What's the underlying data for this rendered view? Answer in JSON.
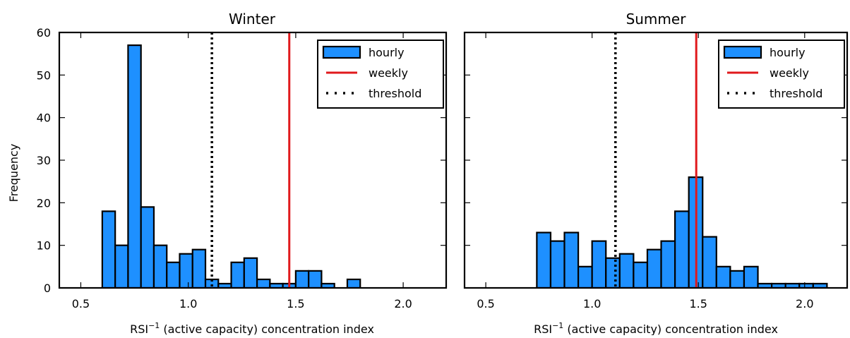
{
  "chart_data": [
    {
      "type": "bar",
      "title": "Winter",
      "xlabel_main": "RSI",
      "xlabel_sup": "−1",
      "xlabel_rest": " (active capacity) concentration index",
      "ylabel": "Frequency",
      "xlim": [
        0.4,
        2.2
      ],
      "ylim": [
        0,
        60
      ],
      "xticks": [
        "0.5",
        "1.0",
        "1.5",
        "2.0"
      ],
      "xtick_values": [
        0.5,
        1.0,
        1.5,
        2.0
      ],
      "yticks": [
        "0",
        "10",
        "20",
        "30",
        "40",
        "50",
        "60"
      ],
      "ytick_values": [
        0,
        10,
        20,
        30,
        40,
        50,
        60
      ],
      "bin_width": 0.06,
      "series": [
        {
          "name": "hourly",
          "type": "histogram",
          "bin_edges": [
            0.6,
            0.66,
            0.72,
            0.78,
            0.84,
            0.9,
            0.96,
            1.02,
            1.08,
            1.14,
            1.2,
            1.26,
            1.32,
            1.38,
            1.44,
            1.5,
            1.56,
            1.62,
            1.68,
            1.74,
            1.8
          ],
          "values": [
            18,
            10,
            57,
            19,
            10,
            6,
            8,
            9,
            2,
            1,
            6,
            7,
            2,
            1,
            1,
            4,
            4,
            1,
            0,
            2
          ]
        },
        {
          "name": "weekly",
          "type": "vline",
          "x": 1.47
        },
        {
          "name": "threshold",
          "type": "vline",
          "x": 1.11
        }
      ],
      "legend": [
        "hourly",
        "weekly",
        "threshold"
      ],
      "legend_position": "top-right",
      "colors": {
        "hourly": "#1E90FF",
        "weekly": "#E0191C",
        "threshold": "#000000"
      }
    },
    {
      "type": "bar",
      "title": "Summer",
      "xlabel_main": "RSI",
      "xlabel_sup": "−1",
      "xlabel_rest": " (active capacity) concentration index",
      "xlim": [
        0.4,
        2.2
      ],
      "ylim": [
        0,
        60
      ],
      "xticks": [
        "0.5",
        "1.0",
        "1.5",
        "2.0"
      ],
      "xtick_values": [
        0.5,
        1.0,
        1.5,
        2.0
      ],
      "bin_width": 0.065,
      "series": [
        {
          "name": "hourly",
          "type": "histogram",
          "bin_edges": [
            0.74,
            0.805,
            0.87,
            0.935,
            1.0,
            1.065,
            1.13,
            1.195,
            1.26,
            1.325,
            1.39,
            1.455,
            1.52,
            1.585,
            1.65,
            1.715,
            1.78,
            1.845,
            1.91,
            1.975,
            2.04,
            2.105
          ],
          "values": [
            13,
            11,
            13,
            5,
            11,
            7,
            8,
            6,
            9,
            11,
            18,
            26,
            12,
            5,
            4,
            5,
            1,
            1,
            1,
            1,
            1
          ]
        },
        {
          "name": "weekly",
          "type": "vline",
          "x": 1.49
        },
        {
          "name": "threshold",
          "type": "vline",
          "x": 1.11
        }
      ],
      "legend": [
        "hourly",
        "weekly",
        "threshold"
      ],
      "legend_position": "top-right",
      "colors": {
        "hourly": "#1E90FF",
        "weekly": "#E0191C",
        "threshold": "#000000"
      }
    }
  ]
}
